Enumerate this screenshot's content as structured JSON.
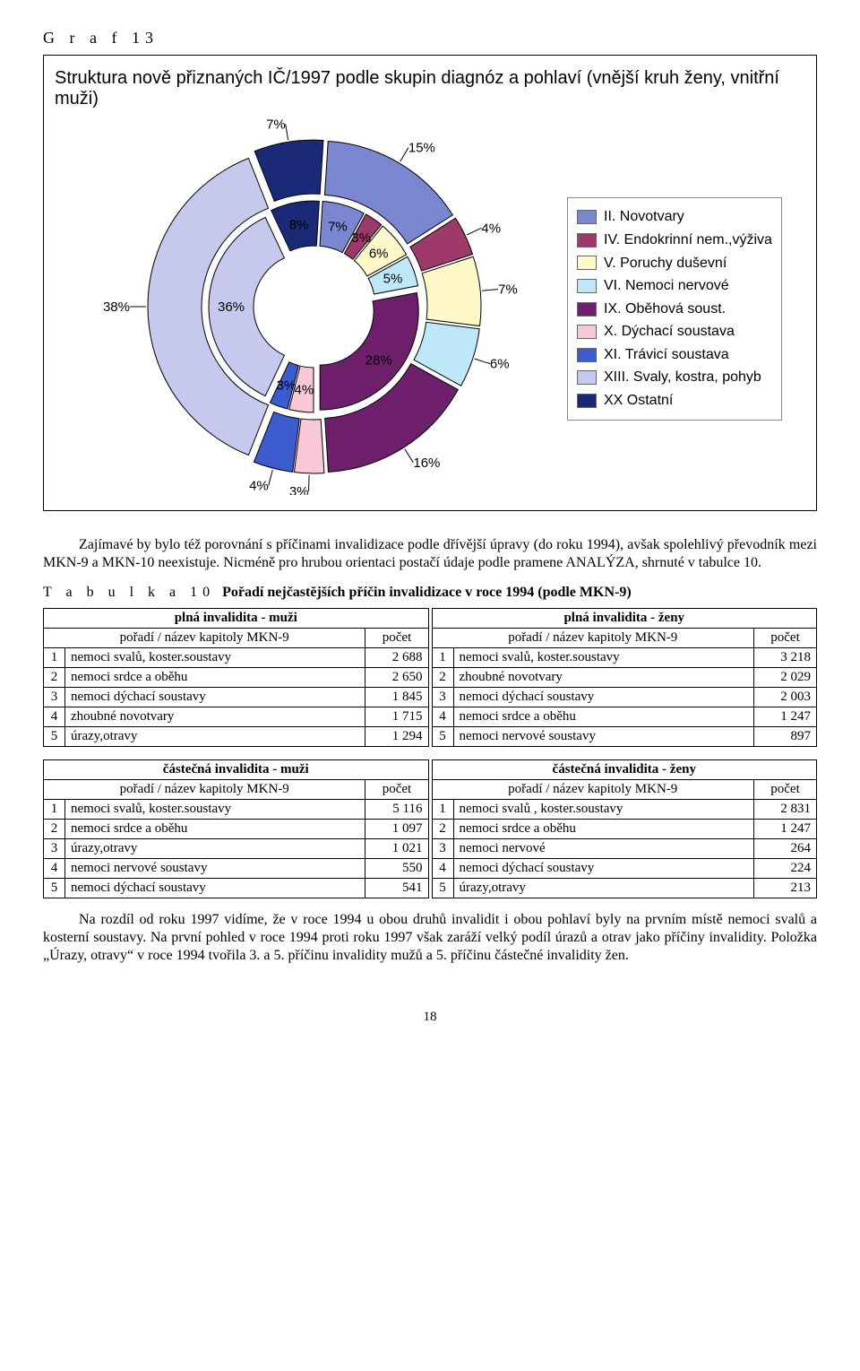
{
  "graf_label": "G r a f  13",
  "chart": {
    "title": "Struktura nově přiznaných IČ/1997 podle skupin diagnóz a pohlaví (vnější kruh ženy, vnitřní muži)",
    "type": "nested-pie",
    "title_fontsize": 20,
    "title_fontfamily": "Arial",
    "background": "#ffffff",
    "legend_border": "#888888",
    "show_leader_lines": true,
    "categories": [
      {
        "label": "II. Novotvary",
        "color": "#7a86d0"
      },
      {
        "label": "IV. Endokrinní nem.,výživa",
        "color": "#9d3a6a"
      },
      {
        "label": "V. Poruchy duševní",
        "color": "#fff9c9"
      },
      {
        "label": "VI. Nemoci nervové",
        "color": "#bee8f7"
      },
      {
        "label": "IX. Oběhová soust.",
        "color": "#6e1f6c"
      },
      {
        "label": "X. Dýchací soustava",
        "color": "#f8c8d8"
      },
      {
        "label": "XI. Trávicí soustava",
        "color": "#3b5bcf"
      },
      {
        "label": "XIII. Svaly, kostra, pohyb",
        "color": "#c6c8ee"
      },
      {
        "label": "XX Ostatní",
        "color": "#1b2a77"
      }
    ],
    "inner": {
      "name": "muži",
      "values_pct": [
        7,
        3,
        6,
        5,
        28,
        4,
        3,
        36,
        8
      ],
      "label_fontsize": 15
    },
    "outer": {
      "name": "ženy",
      "values_pct": [
        15,
        4,
        7,
        6,
        16,
        3,
        4,
        38,
        7
      ],
      "label_fontsize": 15
    },
    "ring": {
      "inner_r_inside": 60,
      "inner_r_outside": 110,
      "outer_r_inside": 118,
      "outer_r_outside": 178,
      "explode_gap": 8
    }
  },
  "paragraph1": "Zajímavé by bylo též porovnání s příčinami invalidizace podle dřívější úpravy (do roku 1994), avšak  spolehlivý převodník mezi MKN-9 a MKN-10 neexistuje. Nicméně pro hrubou orientaci postačí údaje podle pramene ANALÝZA, shrnuté v tabulce 10.",
  "tabulka": {
    "caption_prefix": "T a b u l k a  10",
    "caption_title": "Pořadí nejčastějších příčin invalidizace v roce 1994 (podle MKN-9)",
    "col_hdr_left": "pořadí / název kapitoly MKN-9",
    "col_hdr_right": "pořadí / název kapitoly MKN-9",
    "col_hdr_count": "počet",
    "sections": [
      {
        "hdr_left": "plná invalidita - muži",
        "hdr_right": "plná invalidita - ženy",
        "rows": [
          {
            "lr": 1,
            "lname": "nemoci svalů, koster.soustavy",
            "lnum": "2 688",
            "rr": 1,
            "rname": "nemoci svalů, koster.soustavy",
            "rnum": "3 218"
          },
          {
            "lr": 2,
            "lname": "nemoci srdce a oběhu",
            "lnum": "2 650",
            "rr": 2,
            "rname": "zhoubné novotvary",
            "rnum": "2 029"
          },
          {
            "lr": 3,
            "lname": "nemoci dýchací soustavy",
            "lnum": "1 845",
            "rr": 3,
            "rname": "nemoci dýchací soustavy",
            "rnum": "2 003"
          },
          {
            "lr": 4,
            "lname": "zhoubné novotvary",
            "lnum": "1 715",
            "rr": 4,
            "rname": "nemoci srdce a oběhu",
            "rnum": "1 247"
          },
          {
            "lr": 5,
            "lname": "úrazy,otravy",
            "lnum": "1 294",
            "rr": 5,
            "rname": "nemoci nervové soustavy",
            "rnum": "897"
          }
        ]
      },
      {
        "hdr_left": "částečná invalidita - muži",
        "hdr_right": "částečná invalidita - ženy",
        "rows": [
          {
            "lr": 1,
            "lname": "nemoci svalů, koster.soustavy",
            "lnum": "5 116",
            "rr": 1,
            "rname": "nemoci svalů , koster.soustavy",
            "rnum": "2 831"
          },
          {
            "lr": 2,
            "lname": "nemoci srdce a oběhu",
            "lnum": "1 097",
            "rr": 2,
            "rname": "nemoci srdce a oběhu",
            "rnum": "1 247"
          },
          {
            "lr": 3,
            "lname": "úrazy,otravy",
            "lnum": "1 021",
            "rr": 3,
            "rname": "nemoci nervové",
            "rnum": "264"
          },
          {
            "lr": 4,
            "lname": "nemoci nervové soustavy",
            "lnum": "550",
            "rr": 4,
            "rname": "nemoci dýchací soustavy",
            "rnum": "224"
          },
          {
            "lr": 5,
            "lname": "nemoci dýchací soustavy",
            "lnum": "541",
            "rr": 5,
            "rname": "úrazy,otravy",
            "rnum": "213"
          }
        ]
      }
    ]
  },
  "paragraph2": "Na rozdíl od roku 1997 vidíme, že v roce 1994 u obou druhů invalidit i obou pohlaví byly na prvním místě nemoci svalů a kosterní soustavy. Na první pohled v roce 1994 proti roku 1997  však zaráží velký podíl  úrazů a otrav jako příčiny invalidity. Položka   „Úrazy, otravy“ v roce 1994 tvořila 3. a 5. příčinu invalidity mužů a 5. příčinu částečné invalidity žen.",
  "page_number": "18"
}
